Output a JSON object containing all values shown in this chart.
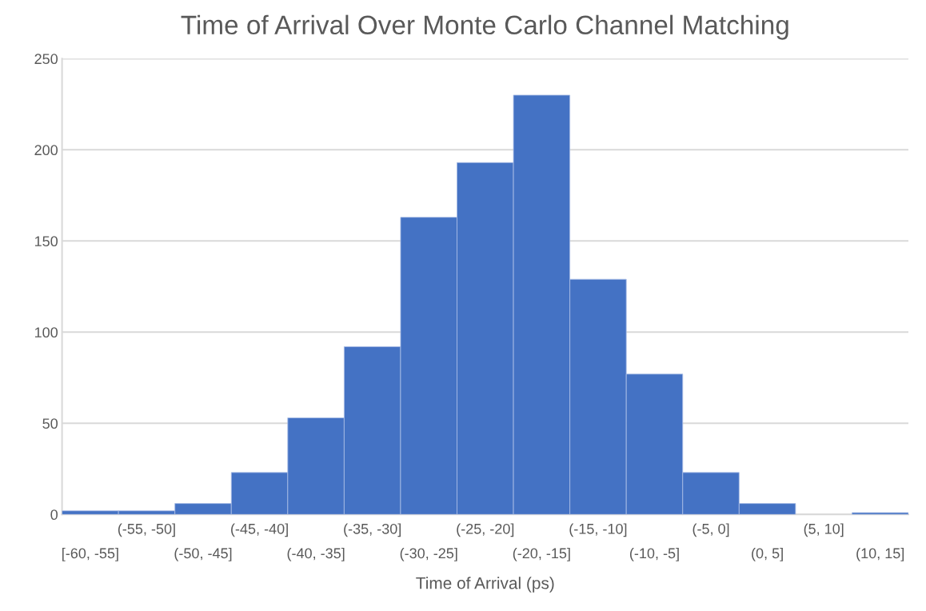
{
  "chart_data": {
    "type": "bar",
    "title": "Time of Arrival Over Monte Carlo Channel Matching",
    "xlabel": "Time of Arrival (ps)",
    "categories": [
      "[-60, -55]",
      "(-55, -50]",
      "(-50, -45]",
      "(-45, -40]",
      "(-40, -35]",
      "(-35, -30]",
      "(-30, -25]",
      "(-25, -20]",
      "(-20, -15]",
      "(-15, -10]",
      "(-10, -5]",
      "(-5, 0]",
      "(0, 5]",
      "(5, 10]",
      "(10, 15]"
    ],
    "values": [
      2,
      2,
      6,
      23,
      53,
      92,
      163,
      193,
      230,
      129,
      77,
      23,
      6,
      0,
      1
    ],
    "color": "#4472c4",
    "ylim": [
      0,
      250
    ],
    "yticks": [
      0,
      50,
      100,
      150,
      200,
      250
    ],
    "grid": "y"
  }
}
